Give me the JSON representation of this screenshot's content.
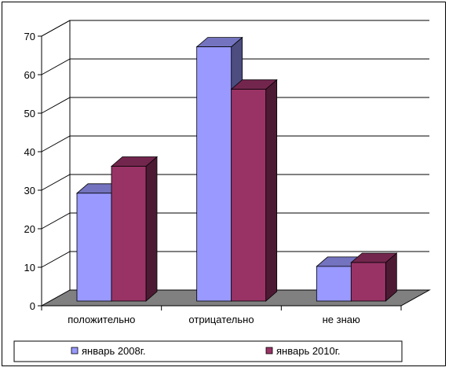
{
  "chart_data": {
    "type": "bar",
    "title": "",
    "xlabel": "",
    "ylabel": "",
    "categories": [
      "положительно",
      "отрицательно",
      "не знаю"
    ],
    "series": [
      {
        "name": "январь 2008г.",
        "values": [
          28,
          66,
          9
        ],
        "color": "#9999ff"
      },
      {
        "name": "январь 2010г.",
        "values": [
          35,
          55,
          10
        ],
        "color": "#993366"
      }
    ],
    "ylim": [
      0,
      70
    ],
    "yticks": [
      0,
      10,
      20,
      30,
      40,
      50,
      60,
      70
    ],
    "grid": true,
    "legend": "bottom",
    "three_d": true,
    "floor_color": "#808080"
  }
}
